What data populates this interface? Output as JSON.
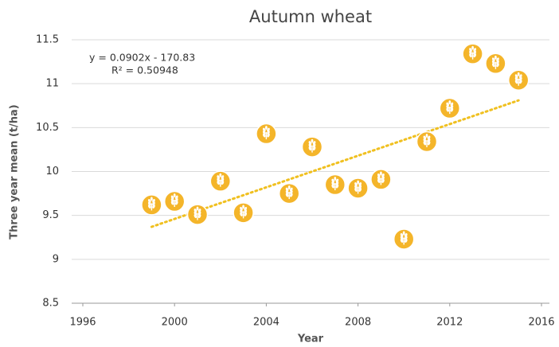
{
  "chart_data": {
    "type": "scatter",
    "title": "Autumn wheat",
    "x_label": "Year",
    "y_label": "Three year mean (t/ha)",
    "annotations": [
      "y = 0.0902x - 170.83",
      "R² = 0.50948"
    ],
    "x": [
      1999,
      2000,
      2001,
      2002,
      2003,
      2004,
      2005,
      2006,
      2007,
      2008,
      2009,
      2010,
      2011,
      2012,
      2013,
      2014,
      2015
    ],
    "values": [
      9.62,
      9.66,
      9.51,
      9.89,
      9.53,
      10.43,
      9.75,
      10.28,
      9.85,
      9.81,
      9.91,
      9.23,
      10.34,
      10.72,
      11.34,
      11.23,
      11.04
    ],
    "color": "#f4b52a",
    "trendline": {
      "x": [
        1999,
        2015
      ],
      "values": [
        9.37,
        10.81
      ],
      "color": "#f0c020"
    },
    "xlim": [
      1996,
      2016
    ],
    "xticks": [
      1996,
      2000,
      2004,
      2008,
      2012,
      2016
    ],
    "ylim": [
      8.5,
      11.5
    ],
    "yticks": [
      8.5,
      9,
      9.5,
      10,
      10.5,
      11,
      11.5
    ],
    "grid": true
  }
}
